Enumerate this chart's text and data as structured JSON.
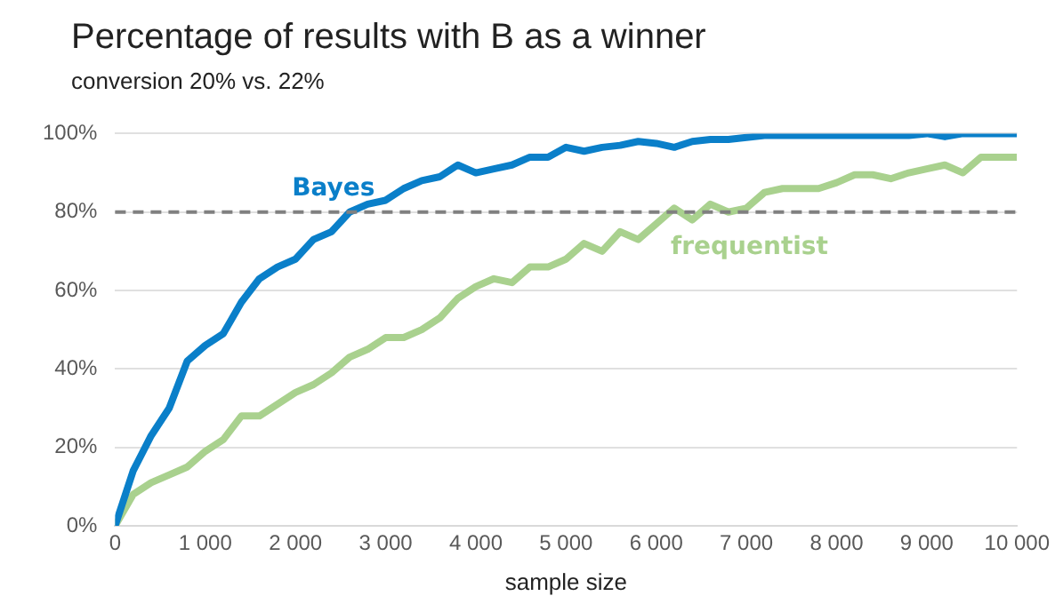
{
  "chart_data": {
    "type": "line",
    "title": "Percentage of results with B as a winner",
    "subtitle": "conversion 20% vs. 22%",
    "xlabel": "sample size",
    "x": [
      0,
      200,
      400,
      600,
      800,
      1000,
      1200,
      1400,
      1600,
      1800,
      2000,
      2200,
      2400,
      2600,
      2800,
      3000,
      3200,
      3400,
      3600,
      3800,
      4000,
      4200,
      4400,
      4600,
      4800,
      5000,
      5200,
      5400,
      5600,
      5800,
      6000,
      6200,
      6400,
      6600,
      6800,
      7000,
      7200,
      7400,
      7600,
      7800,
      8000,
      8200,
      8400,
      8600,
      8800,
      9000,
      9200,
      9400,
      9600,
      9800,
      10000
    ],
    "series": [
      {
        "name": "Bayes",
        "color": "#0a7fc9",
        "values": [
          0,
          14,
          23,
          30,
          42,
          46,
          49,
          57,
          63,
          66,
          68,
          73,
          75,
          80,
          82,
          83,
          86,
          88,
          89,
          92,
          90,
          91,
          92,
          94,
          94,
          96.5,
          95.5,
          96.5,
          97,
          98,
          97.5,
          96.5,
          98,
          98.5,
          98.5,
          99,
          99.5,
          99.5,
          99.5,
          99.5,
          99.5,
          99.5,
          99.5,
          99.5,
          99.5,
          100,
          99.2,
          100,
          100,
          100,
          100
        ]
      },
      {
        "name": "frequentist",
        "color": "#a9d18e",
        "values": [
          0,
          8,
          11,
          13,
          15,
          19,
          22,
          28,
          28,
          31,
          34,
          36,
          39,
          43,
          45,
          48,
          48,
          50,
          53,
          58,
          61,
          63,
          62,
          66,
          66,
          68,
          72,
          70,
          75,
          73,
          77,
          81,
          78,
          82,
          80,
          81,
          85,
          86,
          86,
          86,
          87.5,
          89.5,
          89.5,
          88.5,
          90,
          91,
          92,
          90,
          94,
          94,
          94
        ]
      }
    ],
    "xlim": [
      0,
      10000
    ],
    "xticks": [
      {
        "value": 0,
        "label": "0"
      },
      {
        "value": 1000,
        "label": "1 000"
      },
      {
        "value": 2000,
        "label": "2 000"
      },
      {
        "value": 3000,
        "label": "3 000"
      },
      {
        "value": 4000,
        "label": "4 000"
      },
      {
        "value": 5000,
        "label": "5 000"
      },
      {
        "value": 6000,
        "label": "6 000"
      },
      {
        "value": 7000,
        "label": "7 000"
      },
      {
        "value": 8000,
        "label": "8 000"
      },
      {
        "value": 9000,
        "label": "9 000"
      },
      {
        "value": 10000,
        "label": "10 000"
      }
    ],
    "ylim": [
      0,
      100
    ],
    "yticks": [
      {
        "value": 0,
        "label": "0%"
      },
      {
        "value": 20,
        "label": "20%"
      },
      {
        "value": 40,
        "label": "40%"
      },
      {
        "value": 60,
        "label": "60%"
      },
      {
        "value": 80,
        "label": "80%"
      },
      {
        "value": 100,
        "label": "100%"
      }
    ],
    "ref_lines": [
      {
        "axis": "y",
        "value": 80,
        "color": "#808080",
        "line_style": "dashed"
      }
    ],
    "grid": "y",
    "legend": false,
    "marker": "none",
    "line_style": "solid"
  }
}
